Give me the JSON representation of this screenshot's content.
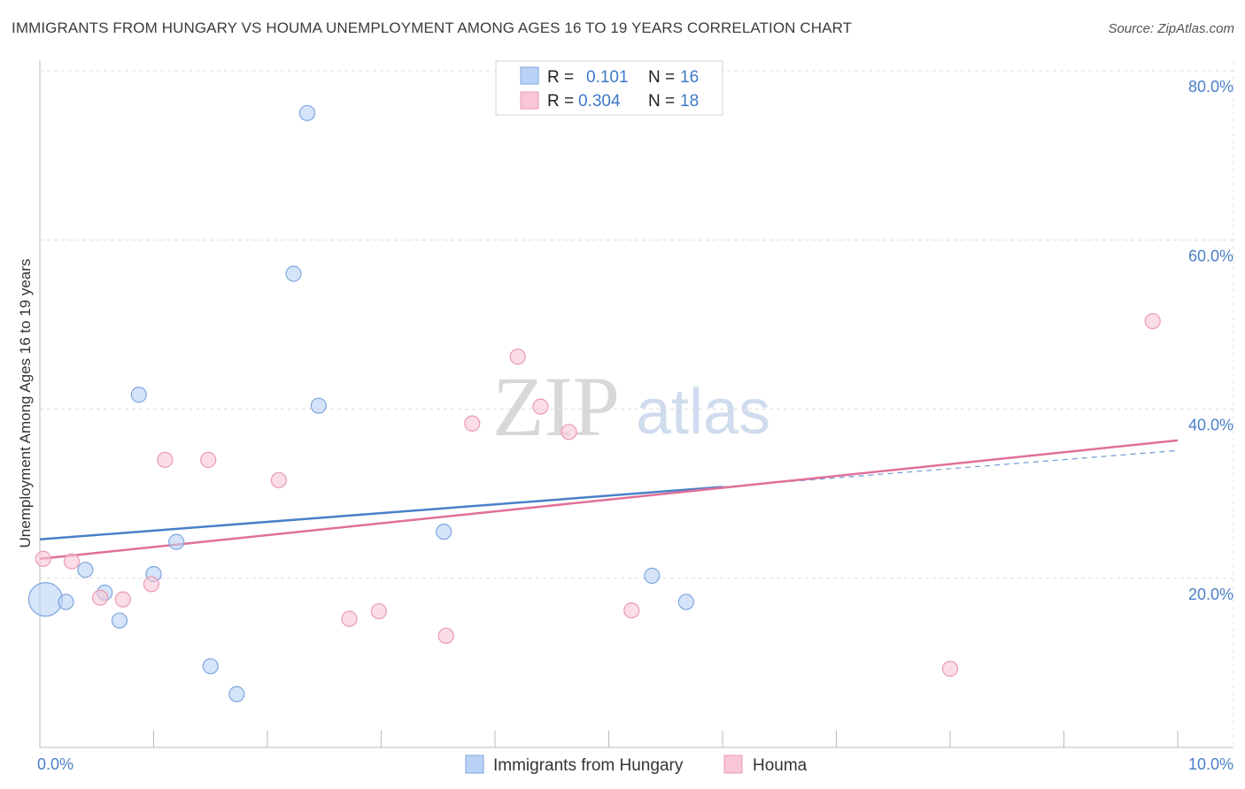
{
  "title": "IMMIGRANTS FROM HUNGARY VS HOUMA UNEMPLOYMENT AMONG AGES 16 TO 19 YEARS CORRELATION CHART",
  "source": "Source: ZipAtlas.com",
  "watermark": {
    "zip": "ZIP",
    "atlas": "atlas"
  },
  "colors": {
    "blue": "#4a7fc8",
    "blue_fill": "#b9d2f5",
    "pink": "#e0709a",
    "pink_fill": "#f8c6d6",
    "grid": "#dddddd"
  },
  "legend": {
    "rows": [
      {
        "r_label": "R =",
        "r_value": "0.101",
        "n_label": "N =",
        "n_value": "16"
      },
      {
        "r_label": "R =",
        "r_value": "0.304",
        "n_label": "N =",
        "n_value": "18"
      }
    ]
  },
  "bottom_legend": [
    "Immigrants from Hungary",
    "Houma"
  ],
  "chart_data": {
    "type": "scatter",
    "title": "IMMIGRANTS FROM HUNGARY VS HOUMA UNEMPLOYMENT AMONG AGES 16 TO 19 YEARS CORRELATION CHART",
    "xlabel": "",
    "ylabel": "Unemployment Among Ages 16 to 19 years",
    "xlim": [
      0,
      10
    ],
    "ylim": [
      0,
      80
    ],
    "x_tick_labels": [
      "0.0%",
      "10.0%"
    ],
    "y_ticks": [
      20,
      40,
      60,
      80
    ],
    "y_tick_labels": [
      "20.0%",
      "40.0%",
      "60.0%",
      "80.0%"
    ],
    "series": [
      {
        "name": "Immigrants from Hungary",
        "color": "#4a7fc8",
        "r": 0.101,
        "n": 16,
        "points": [
          {
            "x": 0.05,
            "y": 17.5,
            "big": true
          },
          {
            "x": 0.23,
            "y": 17.2
          },
          {
            "x": 0.4,
            "y": 21.0
          },
          {
            "x": 0.57,
            "y": 18.3
          },
          {
            "x": 0.7,
            "y": 15.0
          },
          {
            "x": 0.87,
            "y": 41.7
          },
          {
            "x": 1.0,
            "y": 20.5
          },
          {
            "x": 1.2,
            "y": 24.3
          },
          {
            "x": 1.5,
            "y": 9.6
          },
          {
            "x": 1.73,
            "y": 6.3
          },
          {
            "x": 2.23,
            "y": 56.0
          },
          {
            "x": 2.35,
            "y": 75.0
          },
          {
            "x": 2.45,
            "y": 40.4
          },
          {
            "x": 3.55,
            "y": 25.5
          },
          {
            "x": 5.38,
            "y": 20.3
          },
          {
            "x": 5.68,
            "y": 17.2
          }
        ],
        "trend": {
          "x0": 0,
          "y0": 24.6,
          "x1": 6.0,
          "y1": 30.8,
          "dash_to_x": 10,
          "dash_to_y": 35.1
        }
      },
      {
        "name": "Houma",
        "color": "#e0709a",
        "r": 0.304,
        "n": 18,
        "points": [
          {
            "x": 0.03,
            "y": 22.3
          },
          {
            "x": 0.28,
            "y": 22.0
          },
          {
            "x": 0.53,
            "y": 17.7
          },
          {
            "x": 0.73,
            "y": 17.5
          },
          {
            "x": 0.98,
            "y": 19.3
          },
          {
            "x": 1.1,
            "y": 34.0
          },
          {
            "x": 1.48,
            "y": 34.0
          },
          {
            "x": 2.1,
            "y": 31.6
          },
          {
            "x": 2.72,
            "y": 15.2
          },
          {
            "x": 2.98,
            "y": 16.1
          },
          {
            "x": 3.57,
            "y": 13.2
          },
          {
            "x": 3.8,
            "y": 38.3
          },
          {
            "x": 4.2,
            "y": 46.2
          },
          {
            "x": 4.4,
            "y": 40.3
          },
          {
            "x": 4.65,
            "y": 37.3
          },
          {
            "x": 5.2,
            "y": 16.2
          },
          {
            "x": 8.0,
            "y": 9.3
          },
          {
            "x": 9.78,
            "y": 50.4
          }
        ],
        "trend": {
          "x0": 0,
          "y0": 22.3,
          "x1": 10,
          "y1": 36.3
        }
      }
    ]
  }
}
